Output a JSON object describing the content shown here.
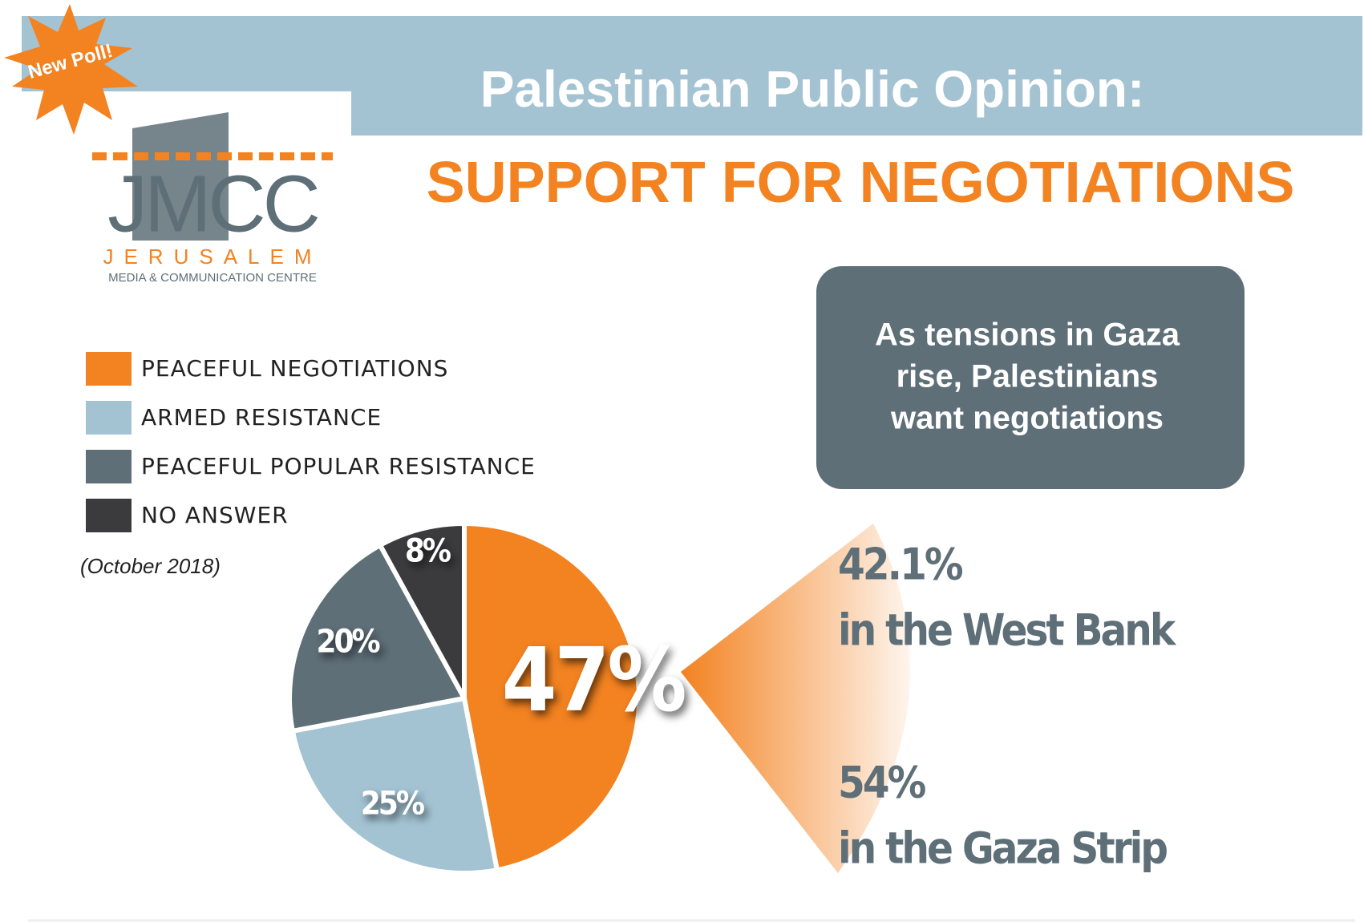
{
  "chart_data": {
    "type": "pie",
    "badge": "New Poll!",
    "logo": {
      "mark": "JMCC",
      "name": "JERUSALEM",
      "tagline": "MEDIA & COMMUNICATION CENTRE"
    },
    "title": "Palestinian Public Opinion:",
    "subtitle": "SUPPORT FOR NEGOTIATIONS",
    "categories": [
      "PEACEFUL NEGOTIATIONS",
      "ARMED RESISTANCE",
      "PEACEFUL POPULAR RESISTANCE",
      "NO ANSWER"
    ],
    "values": [
      47,
      25,
      20,
      8
    ],
    "value_labels": [
      "47%",
      "25%",
      "20%",
      "8%"
    ],
    "colors": [
      "#f38220",
      "#a3c3d3",
      "#5e6f78",
      "#3b3b3d"
    ],
    "date": "(October 2018)",
    "callout": [
      "As tensions in Gaza",
      "rise, Palestinians",
      "want negotiations"
    ],
    "breakdown": [
      {
        "value_label": "42.1%",
        "text": "in the West Bank"
      },
      {
        "value_label": "54%",
        "text": "in the Gaza Strip"
      }
    ]
  }
}
